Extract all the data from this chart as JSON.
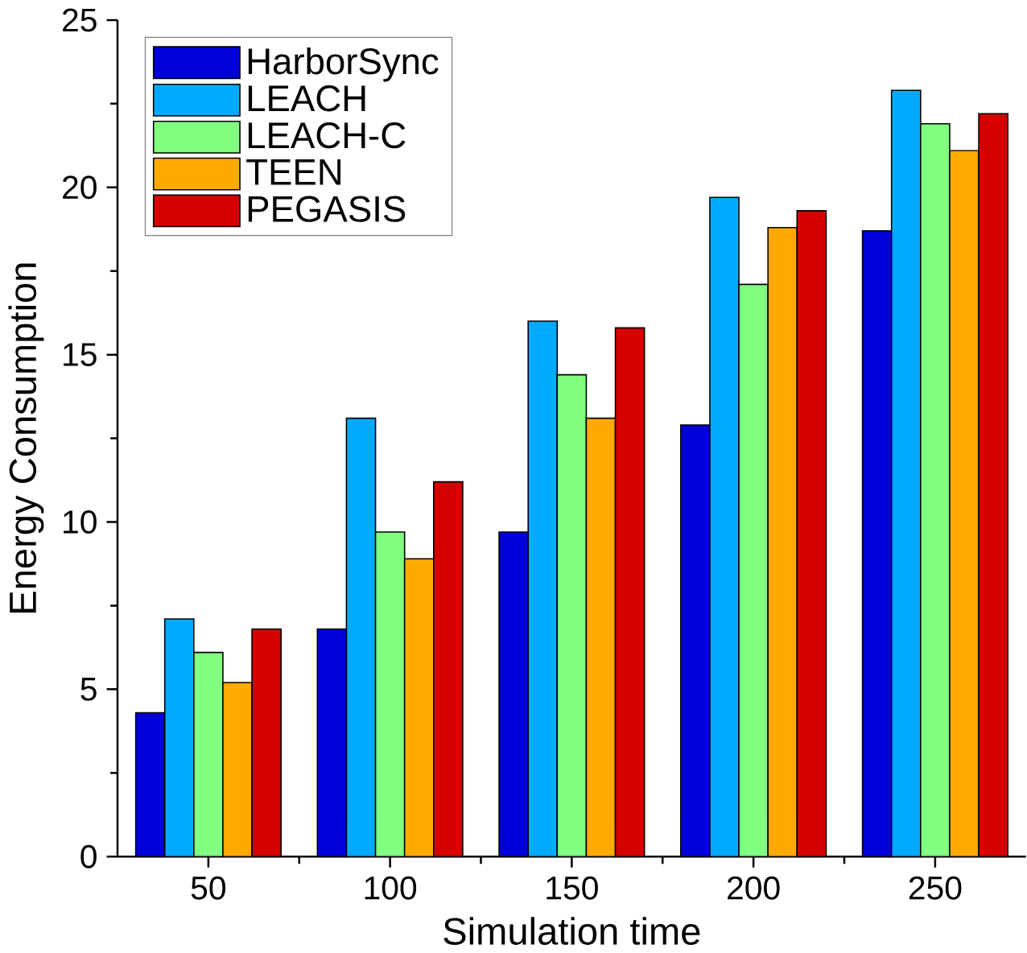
{
  "chart_data": {
    "type": "bar",
    "xlabel": "Simulation time",
    "ylabel": "Energy Consumption",
    "categories": [
      "50",
      "100",
      "150",
      "200",
      "250"
    ],
    "series": [
      {
        "name": "HarborSync",
        "color": "#0000d8",
        "values": [
          4.3,
          6.8,
          9.7,
          12.9,
          18.7
        ]
      },
      {
        "name": "LEACH",
        "color": "#00aaff",
        "values": [
          7.1,
          13.1,
          16.0,
          19.7,
          22.9
        ]
      },
      {
        "name": "LEACH-C",
        "color": "#80ff80",
        "values": [
          6.1,
          9.7,
          14.4,
          17.1,
          21.9
        ]
      },
      {
        "name": "TEEN",
        "color": "#ffaa00",
        "values": [
          5.2,
          8.9,
          13.1,
          18.8,
          21.1
        ]
      },
      {
        "name": "PEGASIS",
        "color": "#d40000",
        "values": [
          6.8,
          11.2,
          15.8,
          19.3,
          22.2
        ]
      }
    ],
    "ylim": [
      0,
      25
    ],
    "yticks": [
      0,
      5,
      10,
      15,
      20,
      25
    ],
    "grid": false,
    "legend": "top left"
  }
}
